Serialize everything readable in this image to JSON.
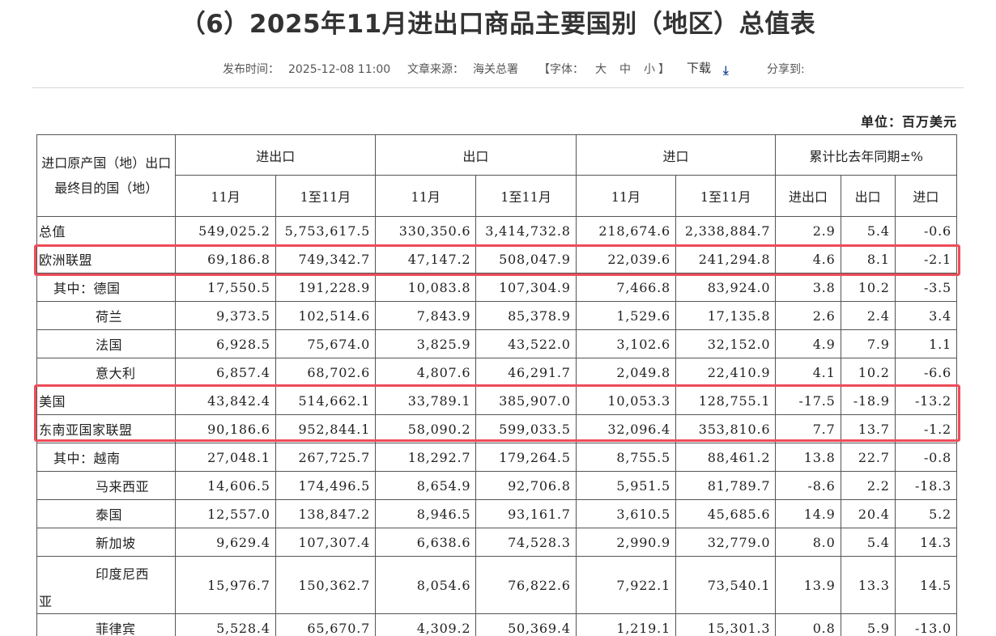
{
  "page": {
    "title": "（6）2025年11月进出口商品主要国别（地区）总值表",
    "meta": {
      "publish_label": "发布时间：",
      "publish_time": "2025-12-08 11:00",
      "source_label": "文章来源：",
      "source": "海关总署",
      "font_open": "【字体：",
      "font_large": "大",
      "font_medium": "中",
      "font_small": "小",
      "font_close": "】",
      "download": "下载",
      "share": "分享到:"
    },
    "unit": "单位：百万美元"
  },
  "table": {
    "corner": "进口原产国（地）出口最终目的国（地）",
    "groups": [
      "进出口",
      "出口",
      "进口",
      "累计比去年同期±%"
    ],
    "subheaders": [
      "11月",
      "1至11月",
      "11月",
      "1至11月",
      "11月",
      "1至11月",
      "进出口",
      "出口",
      "进口"
    ],
    "rows": [
      {
        "name": "总值",
        "cells": [
          "549,025.2",
          "5,753,617.5",
          "330,350.6",
          "3,414,732.8",
          "218,674.6",
          "2,338,884.7",
          "2.9",
          "5.4",
          "-0.6"
        ]
      },
      {
        "name": "欧洲联盟",
        "cells": [
          "69,186.8",
          "749,342.7",
          "47,147.2",
          "508,047.9",
          "22,039.6",
          "241,294.8",
          "4.6",
          "8.1",
          "-2.1"
        ]
      },
      {
        "name": "其中：德国",
        "cells": [
          "17,550.5",
          "191,228.9",
          "10,083.8",
          "107,304.9",
          "7,466.8",
          "83,924.0",
          "3.8",
          "10.2",
          "-3.5"
        ]
      },
      {
        "name": "荷兰",
        "cells": [
          "9,373.5",
          "102,514.6",
          "7,843.9",
          "85,378.9",
          "1,529.6",
          "17,135.8",
          "2.6",
          "2.4",
          "3.4"
        ]
      },
      {
        "name": "法国",
        "cells": [
          "6,928.5",
          "75,674.0",
          "3,825.9",
          "43,522.0",
          "3,102.6",
          "32,152.0",
          "4.9",
          "7.9",
          "1.1"
        ]
      },
      {
        "name": "意大利",
        "cells": [
          "6,857.4",
          "68,702.6",
          "4,807.6",
          "46,291.7",
          "2,049.8",
          "22,410.9",
          "4.1",
          "10.2",
          "-6.6"
        ]
      },
      {
        "name": "美国",
        "cells": [
          "43,842.4",
          "514,662.1",
          "33,789.1",
          "385,907.0",
          "10,053.3",
          "128,755.1",
          "-17.5",
          "-18.9",
          "-13.2"
        ]
      },
      {
        "name": "东南亚国家联盟",
        "cells": [
          "90,186.6",
          "952,844.1",
          "58,090.2",
          "599,033.5",
          "32,096.4",
          "353,810.6",
          "7.7",
          "13.7",
          "-1.2"
        ]
      },
      {
        "name": "其中：越南",
        "cells": [
          "27,048.1",
          "267,725.7",
          "18,292.7",
          "179,264.5",
          "8,755.5",
          "88,461.2",
          "13.8",
          "22.7",
          "-0.8"
        ]
      },
      {
        "name": "马来西亚",
        "cells": [
          "14,606.5",
          "174,496.5",
          "8,654.9",
          "92,706.8",
          "5,951.5",
          "81,789.7",
          "-8.6",
          "2.2",
          "-18.3"
        ]
      },
      {
        "name": "泰国",
        "cells": [
          "12,557.0",
          "138,847.2",
          "8,946.5",
          "93,161.7",
          "3,610.5",
          "45,685.6",
          "14.9",
          "20.4",
          "5.2"
        ]
      },
      {
        "name": "新加坡",
        "cells": [
          "9,629.4",
          "107,307.4",
          "6,638.6",
          "74,528.3",
          "2,990.9",
          "32,779.0",
          "8.0",
          "5.4",
          "14.3"
        ]
      },
      {
        "name_line1": "印度尼西",
        "name_line2": "亚",
        "cells": [
          "15,976.7",
          "150,362.7",
          "8,054.6",
          "76,822.6",
          "7,922.1",
          "73,540.1",
          "13.9",
          "13.3",
          "14.5"
        ]
      },
      {
        "name": "菲律宾",
        "cells": [
          "5,528.4",
          "65,670.7",
          "4,309.2",
          "50,369.4",
          "1,219.1",
          "15,301.3",
          "0.8",
          "5.9",
          "-13.0"
        ]
      }
    ]
  },
  "colors": {
    "highlight": "#ee4c5a",
    "download_icon": "#1f4e9c",
    "border": "#555555"
  },
  "icons": {
    "download": "download-arrow-icon"
  }
}
